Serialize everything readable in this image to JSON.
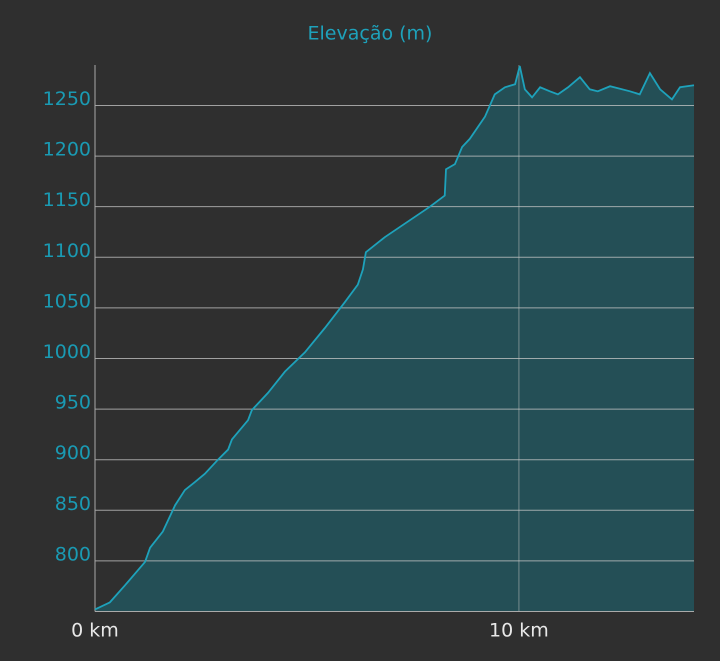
{
  "chart_data": {
    "type": "area",
    "title": "Elevação (m)",
    "x": [
      0,
      0.35,
      0.71,
      1.18,
      1.3,
      1.6,
      1.89,
      2.12,
      2.36,
      2.59,
      2.9,
      3.14,
      3.23,
      3.61,
      3.7,
      4.08,
      4.48,
      4.95,
      5.42,
      5.9,
      6.2,
      6.32,
      6.39,
      6.84,
      7.9,
      8.25,
      8.28,
      8.49,
      8.66,
      8.84,
      9.2,
      9.43,
      9.67,
      9.91,
      10.02,
      10.14,
      10.31,
      10.5,
      10.73,
      10.92,
      11.16,
      11.44,
      11.67,
      11.86,
      12.15,
      12.62,
      12.85,
      13.09,
      13.33,
      13.61,
      13.8,
      14.13
    ],
    "series": [
      {
        "color": "#1ea2bb",
        "fill": "#244f56",
        "values": [
          752,
          759,
          776,
          799,
          813,
          829,
          855,
          870,
          878,
          886,
          900,
          910,
          920,
          939,
          949,
          966,
          987,
          1006,
          1030,
          1056,
          1073,
          1088,
          1105,
          1120,
          1150,
          1161,
          1187,
          1192,
          1209,
          1217,
          1239,
          1261,
          1268,
          1271,
          1289,
          1266,
          1258,
          1268,
          1264,
          1261,
          1268,
          1278,
          1266,
          1264,
          1269,
          1264,
          1261,
          1282,
          1266,
          1256,
          1268,
          1270
        ]
      }
    ],
    "xlim": [
      0,
      14.13
    ],
    "ylim": [
      750,
      1290
    ],
    "xticks": [
      {
        "value": 0,
        "label": "0 km"
      },
      {
        "value": 10,
        "label": "10 km"
      }
    ],
    "yticks": [
      800,
      850,
      900,
      950,
      1000,
      1050,
      1100,
      1150,
      1200,
      1250
    ],
    "grid": true
  }
}
